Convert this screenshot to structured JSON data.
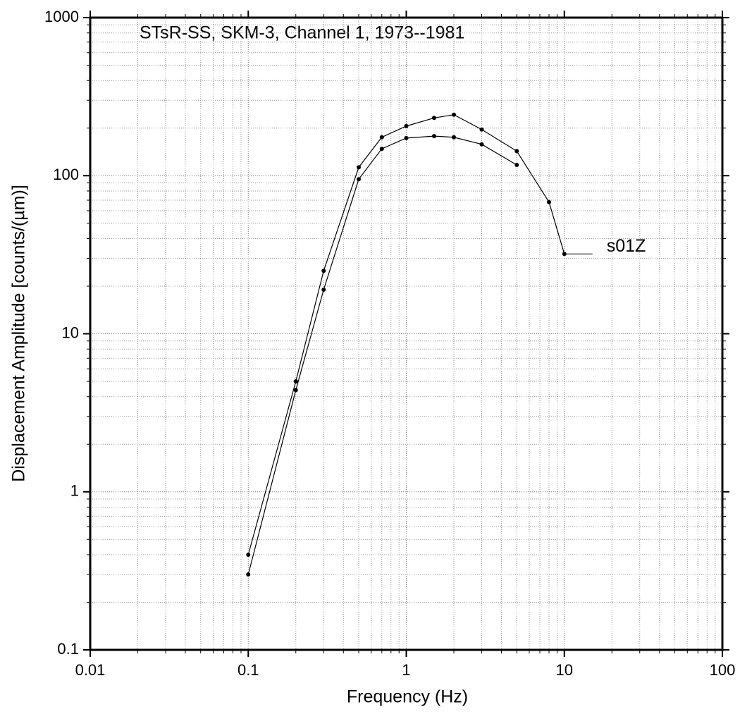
{
  "chart_data": {
    "type": "line",
    "title": "STsR-SS, SKM-3, Channel 1, 1973--1981",
    "xlabel": "Frequency (Hz)",
    "ylabel": "Displacement Amplitude [counts/(µm)]",
    "annotation": "s01Z",
    "log_x": true,
    "log_y": true,
    "grid": true,
    "xlim": [
      0.01,
      100
    ],
    "xticks": [
      0.01,
      0.1,
      1,
      10,
      100
    ],
    "ylim": [
      0.1,
      1000
    ],
    "yticks": [
      0.1,
      1,
      10,
      100,
      1000
    ],
    "series": [
      {
        "color": "#000000",
        "x": [
          0.1,
          0.2,
          0.3,
          0.5,
          0.7,
          1,
          1.5,
          2,
          3,
          5,
          8,
          10
        ],
        "values": [
          0.4,
          5,
          25,
          113,
          175,
          206,
          232,
          243,
          196,
          143,
          68,
          32
        ]
      },
      {
        "color": "#000000",
        "x": [
          0.1,
          0.2,
          0.3,
          0.5,
          0.7,
          1,
          1.5,
          2,
          3,
          5
        ],
        "values": [
          0.3,
          4.4,
          19,
          95,
          148,
          173,
          178,
          175,
          158,
          117
        ]
      }
    ]
  }
}
